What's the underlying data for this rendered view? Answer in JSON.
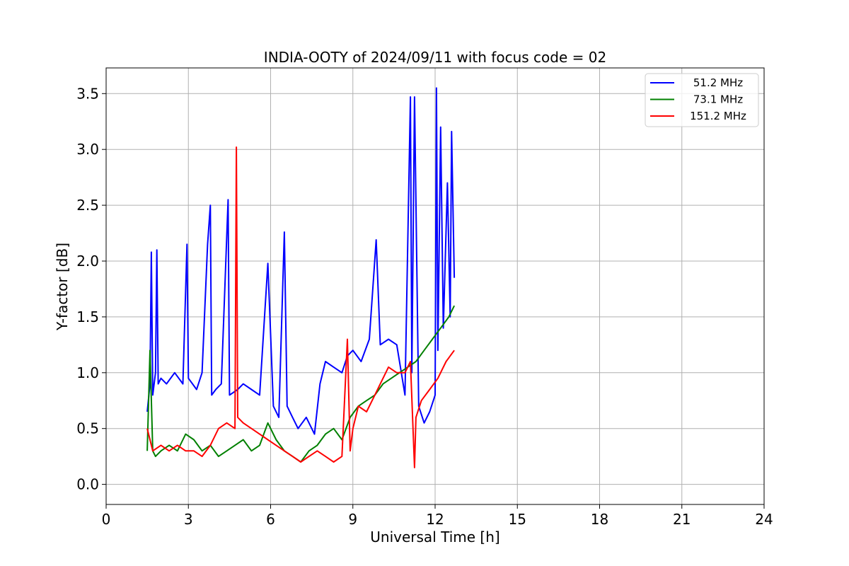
{
  "chart_data": {
    "type": "line",
    "title": "INDIA-OOTY of 2024/09/11 with focus code = 02",
    "xlabel": "Universal Time [h]",
    "ylabel": "Y-factor [dB]",
    "xlim": [
      0,
      24
    ],
    "ylim": [
      -0.18,
      3.73
    ],
    "xticks": [
      0,
      3,
      6,
      9,
      12,
      15,
      18,
      21,
      24
    ],
    "yticks": [
      0.0,
      0.5,
      1.0,
      1.5,
      2.0,
      2.5,
      3.0,
      3.5
    ],
    "xtick_labels": [
      "0",
      "3",
      "6",
      "9",
      "12",
      "15",
      "18",
      "21",
      "24"
    ],
    "ytick_labels": [
      "0.0",
      "0.5",
      "1.0",
      "1.5",
      "2.0",
      "2.5",
      "3.0",
      "3.5"
    ],
    "grid": true,
    "legend_position": "top-right",
    "series": [
      {
        "name": "51.2 MHz",
        "color": "#0000ff",
        "x": [
          1.5,
          1.6,
          1.65,
          1.7,
          1.8,
          1.85,
          1.9,
          2.0,
          2.2,
          2.5,
          2.8,
          2.95,
          3.0,
          3.3,
          3.5,
          3.7,
          3.8,
          3.85,
          4.0,
          4.2,
          4.45,
          4.5,
          4.8,
          5.0,
          5.3,
          5.6,
          5.9,
          6.1,
          6.3,
          6.5,
          6.6,
          6.8,
          7.0,
          7.3,
          7.6,
          7.8,
          8.0,
          8.3,
          8.6,
          8.8,
          9.0,
          9.3,
          9.6,
          9.85,
          10.0,
          10.3,
          10.6,
          10.9,
          11.1,
          11.15,
          11.25,
          11.4,
          11.6,
          11.8,
          12.0,
          12.05,
          12.1,
          12.2,
          12.3,
          12.45,
          12.55,
          12.6,
          12.7
        ],
        "values": [
          0.65,
          0.9,
          2.08,
          0.8,
          1.0,
          2.1,
          0.9,
          0.95,
          0.9,
          1.0,
          0.9,
          2.15,
          0.95,
          0.85,
          1.0,
          2.15,
          2.5,
          0.8,
          0.85,
          0.9,
          2.55,
          0.8,
          0.85,
          0.9,
          0.85,
          0.8,
          1.98,
          0.7,
          0.6,
          2.26,
          0.7,
          0.6,
          0.5,
          0.6,
          0.45,
          0.9,
          1.1,
          1.05,
          1.0,
          1.15,
          1.2,
          1.1,
          1.3,
          2.19,
          1.25,
          1.3,
          1.25,
          0.8,
          3.47,
          1.0,
          3.47,
          0.7,
          0.55,
          0.65,
          0.8,
          3.55,
          1.2,
          3.2,
          1.4,
          2.7,
          1.5,
          3.16,
          1.85
        ]
      },
      {
        "name": "73.1 MHz",
        "color": "#008000",
        "x": [
          1.5,
          1.6,
          1.7,
          1.8,
          2.0,
          2.3,
          2.6,
          2.9,
          3.2,
          3.5,
          3.8,
          4.1,
          4.4,
          4.7,
          5.0,
          5.3,
          5.6,
          5.9,
          6.2,
          6.5,
          6.8,
          7.1,
          7.4,
          7.7,
          8.0,
          8.3,
          8.6,
          8.9,
          9.2,
          9.5,
          9.8,
          10.1,
          10.4,
          10.7,
          11.0,
          11.3,
          11.6,
          11.9,
          12.2,
          12.5,
          12.7
        ],
        "values": [
          0.3,
          1.2,
          0.3,
          0.25,
          0.3,
          0.35,
          0.3,
          0.45,
          0.4,
          0.3,
          0.35,
          0.25,
          0.3,
          0.35,
          0.4,
          0.3,
          0.35,
          0.55,
          0.4,
          0.3,
          0.25,
          0.2,
          0.3,
          0.35,
          0.45,
          0.5,
          0.4,
          0.6,
          0.7,
          0.75,
          0.8,
          0.9,
          0.95,
          1.0,
          1.05,
          1.1,
          1.2,
          1.3,
          1.4,
          1.5,
          1.6
        ]
      },
      {
        "name": "151.2 MHz",
        "color": "#ff0000",
        "x": [
          1.5,
          1.7,
          2.0,
          2.3,
          2.6,
          2.9,
          3.2,
          3.5,
          3.8,
          4.1,
          4.4,
          4.7,
          4.75,
          4.8,
          5.0,
          5.3,
          5.6,
          5.9,
          6.2,
          6.5,
          6.8,
          7.1,
          7.4,
          7.7,
          8.0,
          8.3,
          8.6,
          8.8,
          8.9,
          9.0,
          9.2,
          9.5,
          9.8,
          10.0,
          10.3,
          10.6,
          10.9,
          11.1,
          11.25,
          11.3,
          11.5,
          11.8,
          12.1,
          12.4,
          12.7
        ],
        "values": [
          0.5,
          0.3,
          0.35,
          0.3,
          0.35,
          0.3,
          0.3,
          0.25,
          0.35,
          0.5,
          0.55,
          0.5,
          3.02,
          0.6,
          0.55,
          0.5,
          0.45,
          0.4,
          0.35,
          0.3,
          0.25,
          0.2,
          0.25,
          0.3,
          0.25,
          0.2,
          0.25,
          1.3,
          0.3,
          0.5,
          0.7,
          0.65,
          0.8,
          0.9,
          1.05,
          1.0,
          1.0,
          1.1,
          0.15,
          0.6,
          0.75,
          0.85,
          0.95,
          1.1,
          1.2
        ]
      }
    ]
  }
}
